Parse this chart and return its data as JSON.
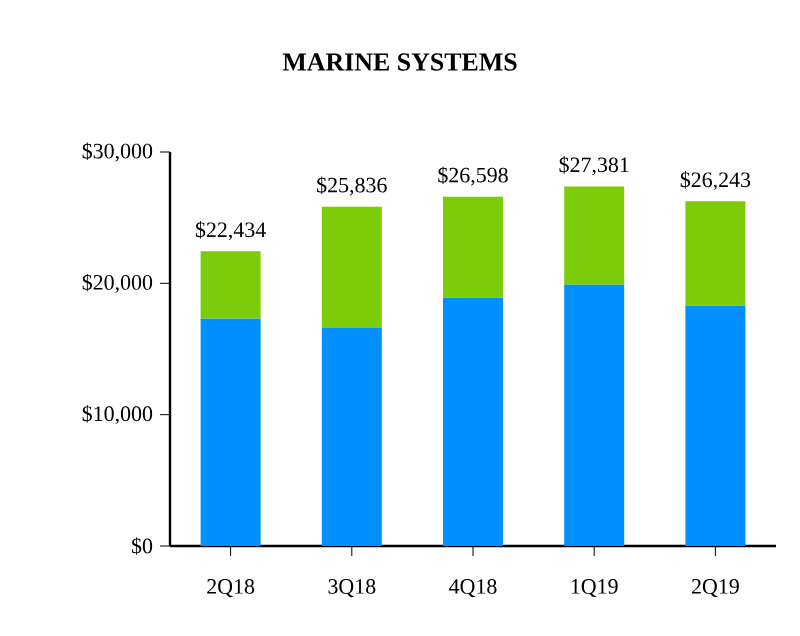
{
  "chart_data": {
    "type": "bar",
    "title": "MARINE SYSTEMS",
    "stacked": true,
    "categories": [
      "2Q18",
      "3Q18",
      "4Q18",
      "1Q19",
      "2Q19"
    ],
    "series": [
      {
        "color": "#0090ff",
        "values": [
          17300,
          16600,
          18900,
          19900,
          18300
        ]
      },
      {
        "color": "#7dcc0a",
        "values": [
          5134,
          9236,
          7698,
          7481,
          7943
        ]
      }
    ],
    "totals": [
      "$22,434",
      "$25,836",
      "$26,598",
      "$27,381",
      "$26,243"
    ],
    "ylim": [
      0,
      30000
    ],
    "yticks": [
      {
        "value": 0,
        "label": "$0"
      },
      {
        "value": 10000,
        "label": "$10,000"
      },
      {
        "value": 20000,
        "label": "$20,000"
      },
      {
        "value": 30000,
        "label": "$30,000"
      }
    ],
    "data_labels": false
  }
}
